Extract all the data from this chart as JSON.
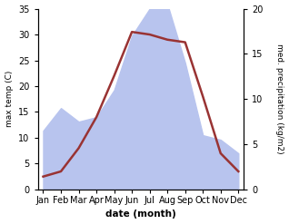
{
  "months": [
    "Jan",
    "Feb",
    "Mar",
    "Apr",
    "May",
    "Jun",
    "Jul",
    "Aug",
    "Sep",
    "Oct",
    "Nov",
    "Dec"
  ],
  "temperature": [
    2.5,
    3.5,
    8.0,
    14.0,
    22.0,
    30.5,
    30.0,
    29.0,
    28.5,
    18.0,
    7.0,
    3.5
  ],
  "precipitation": [
    6.5,
    9.0,
    7.5,
    8.0,
    11.0,
    17.0,
    20.0,
    20.5,
    14.0,
    6.0,
    5.5,
    4.0
  ],
  "temp_color": "#993333",
  "precip_fill_color": "#b8c4ee",
  "xlabel": "date (month)",
  "ylabel_left": "max temp (C)",
  "ylabel_right": "med. precipitation (kg/m2)",
  "ylim_left": [
    0,
    35
  ],
  "ylim_right": [
    0,
    20
  ],
  "yticks_left": [
    0,
    5,
    10,
    15,
    20,
    25,
    30,
    35
  ],
  "yticks_right": [
    0,
    5,
    10,
    15,
    20
  ],
  "background_color": "#ffffff",
  "line_width": 1.8,
  "xlabel_fontsize": 7.5,
  "ylabel_fontsize": 6.5,
  "tick_fontsize": 7.0
}
